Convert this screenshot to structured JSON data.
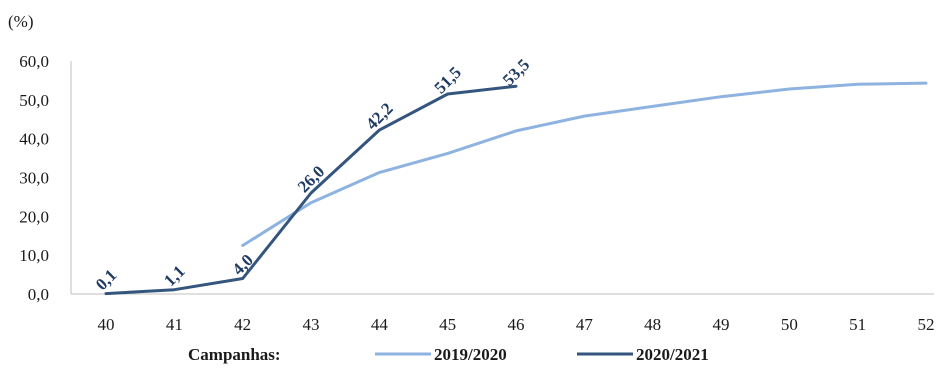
{
  "chart_data": {
    "type": "line",
    "unit_label": "(%)",
    "x": [
      40,
      41,
      42,
      43,
      44,
      45,
      46,
      47,
      48,
      49,
      50,
      51,
      52
    ],
    "xlim": [
      40,
      52
    ],
    "ylim": [
      0,
      60
    ],
    "yticks": [
      "0,0",
      "10,0",
      "20,0",
      "30,0",
      "40,0",
      "50,0",
      "60,0"
    ],
    "grid": false,
    "legend_title": "Campanhas:",
    "legend_position": "bottom",
    "series": [
      {
        "name": "2019/2020",
        "color": "#8eb3e0",
        "x": [
          42,
          43,
          44,
          45,
          46,
          47,
          48,
          49,
          50,
          51,
          52
        ],
        "values": [
          12.5,
          23.5,
          31.3,
          36.2,
          42.0,
          45.8,
          48.3,
          50.8,
          52.8,
          54.0,
          54.3
        ]
      },
      {
        "name": "2020/2021",
        "color": "#34557e",
        "x": [
          40,
          41,
          42,
          43,
          44,
          45,
          46
        ],
        "values": [
          0.1,
          1.1,
          4.0,
          26.0,
          42.2,
          51.5,
          53.5
        ],
        "data_labels": [
          "0,1",
          "1,1",
          "4,0",
          "26,0",
          "42,2",
          "51,5",
          "53,5"
        ]
      }
    ]
  }
}
